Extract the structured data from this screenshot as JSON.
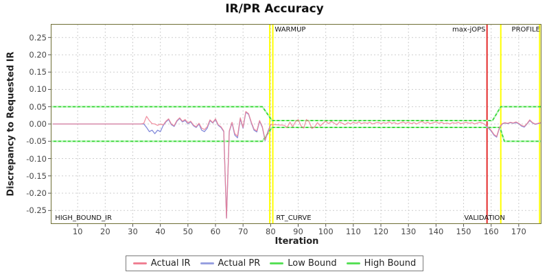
{
  "title": "IR/PR Accuracy",
  "x_axis": {
    "label": "Iteration"
  },
  "y_axis": {
    "label": "Discrepancy to Requested IR"
  },
  "legend": {
    "items": [
      {
        "label": "Actual IR",
        "color": "#ef8093"
      },
      {
        "label": "Actual PR",
        "color": "#98a0e0"
      },
      {
        "label": "Low Bound",
        "color": "#57e057"
      },
      {
        "label": "High Bound",
        "color": "#57e057"
      }
    ]
  },
  "colors": {
    "plot_border": "#6d6d32",
    "grid": "#cdcdcd",
    "tick_label": "#464646",
    "warmup_line": "#ffff00",
    "max_jops_line": "#e42b2b",
    "actual_ir": "#ef8093",
    "actual_pr": "#8289da",
    "bound": "#3fd83f"
  },
  "chart_data": {
    "type": "line",
    "title": "IR/PR Accuracy",
    "xlabel": "Iteration",
    "ylabel": "Discrepancy to Requested IR",
    "xlim": [
      0.5,
      178
    ],
    "ylim": [
      -0.287,
      0.287
    ],
    "grid": true,
    "legend_position": "bottom",
    "x_ticks": [
      10,
      20,
      30,
      40,
      50,
      60,
      70,
      80,
      90,
      100,
      110,
      120,
      130,
      140,
      150,
      160,
      170
    ],
    "y_ticks": [
      "0.25",
      "0.20",
      "0.15",
      "0.10",
      "0.05",
      "0.00",
      "-0.05",
      "-0.10",
      "-0.15",
      "-0.20",
      "-0.25"
    ],
    "events": [
      {
        "name": "warmup-start",
        "x": 79.7,
        "color": "#ffff00",
        "width": 2
      },
      {
        "name": "warmup-end",
        "x": 80.8,
        "color": "#ffff00",
        "width": 2
      },
      {
        "name": "max-jops",
        "x": 158.5,
        "color": "#e42b2b",
        "width": 2
      },
      {
        "name": "profile-start",
        "x": 163.5,
        "color": "#ffff00",
        "width": 2
      },
      {
        "name": "profile-end",
        "x": 177.6,
        "color": "#ffff00",
        "width": 2
      }
    ],
    "annotations": [
      {
        "text": "WARMUP",
        "x": 81,
        "v": "top",
        "align": "left"
      },
      {
        "text": "max-jOPS",
        "x": 158.2,
        "v": "top",
        "align": "right"
      },
      {
        "text": "PROFILE",
        "x": 178,
        "v": "top",
        "align": "right"
      },
      {
        "text": "HIGH_BOUND_IR",
        "x": 1.3,
        "v": "bottom",
        "align": "left"
      },
      {
        "text": "RT_CURVE",
        "x": 81.5,
        "v": "bottom",
        "align": "left"
      },
      {
        "text": "VALIDATION",
        "x": 149.7,
        "v": "bottom",
        "align": "left"
      }
    ],
    "series": [
      {
        "name": "High Bound",
        "color": "#3fd83f",
        "width": 2,
        "dash_overlay": "#b9f7b9",
        "segments": [
          [
            [
              0.5,
              0.05
            ],
            [
              77,
              0.05
            ],
            [
              80.5,
              0.01
            ],
            [
              160.5,
              0.01
            ],
            [
              163.5,
              0.05
            ],
            [
              178,
              0.05
            ]
          ]
        ]
      },
      {
        "name": "Low Bound",
        "color": "#3fd83f",
        "width": 2,
        "dash_overlay": "#b9f7b9",
        "segments": [
          [
            [
              0.5,
              -0.05
            ],
            [
              77,
              -0.05
            ],
            [
              80.5,
              -0.01
            ],
            [
              163.2,
              -0.01
            ],
            [
              164.8,
              -0.05
            ],
            [
              178,
              -0.05
            ]
          ]
        ]
      },
      {
        "name": "Actual PR",
        "color": "#8289da",
        "width": 1.3,
        "segments": [
          [
            [
              1,
              0
            ],
            [
              33,
              0
            ],
            [
              34,
              0
            ],
            [
              35,
              -0.01
            ],
            [
              36,
              -0.022
            ],
            [
              37,
              -0.018
            ],
            [
              38,
              -0.028
            ],
            [
              39,
              -0.018
            ],
            [
              40,
              -0.022
            ],
            [
              41,
              -0.005
            ],
            [
              42,
              0.006
            ],
            [
              43,
              0.013
            ],
            [
              44,
              -0.002
            ],
            [
              45,
              -0.007
            ],
            [
              46,
              0.008
            ],
            [
              47,
              0.016
            ],
            [
              48,
              0.006
            ],
            [
              49,
              0.01
            ],
            [
              50,
              0.001
            ],
            [
              51,
              0.006
            ],
            [
              52,
              -0.005
            ],
            [
              53,
              -0.01
            ],
            [
              54,
              0
            ],
            [
              55,
              -0.018
            ],
            [
              56,
              -0.022
            ],
            [
              57,
              -0.012
            ],
            [
              58,
              0.01
            ],
            [
              59,
              0.003
            ],
            [
              60,
              0.013
            ],
            [
              61,
              -0.004
            ],
            [
              62,
              -0.01
            ],
            [
              63,
              -0.022
            ],
            [
              64,
              -0.272
            ],
            [
              65,
              -0.022
            ],
            [
              66,
              0.003
            ],
            [
              67,
              -0.032
            ],
            [
              68,
              -0.04
            ],
            [
              69,
              0.015
            ],
            [
              70,
              -0.012
            ],
            [
              71,
              0.034
            ],
            [
              72,
              0.028
            ],
            [
              73,
              0.003
            ],
            [
              74,
              -0.018
            ],
            [
              75,
              -0.023
            ],
            [
              76,
              0.008
            ],
            [
              77,
              -0.01
            ],
            [
              78,
              -0.048
            ],
            [
              79,
              -0.022
            ],
            [
              80,
              -0.002
            ]
          ],
          [
            [
              158,
              -0.004
            ],
            [
              159,
              -0.012
            ],
            [
              160,
              -0.02
            ],
            [
              161,
              -0.032
            ],
            [
              162,
              -0.038
            ],
            [
              163,
              -0.012
            ],
            [
              164,
              0
            ],
            [
              165,
              0.003
            ],
            [
              166,
              0.001
            ],
            [
              167,
              0.004
            ],
            [
              168,
              0.002
            ],
            [
              169,
              0.004
            ],
            [
              170,
              0.001
            ],
            [
              171,
              -0.006
            ],
            [
              172,
              -0.009
            ],
            [
              173,
              0
            ],
            [
              174,
              0.01
            ],
            [
              175,
              0.003
            ],
            [
              176,
              -0.001
            ],
            [
              177,
              0.001
            ],
            [
              178,
              0.003
            ]
          ]
        ]
      },
      {
        "name": "Actual IR",
        "color": "#ef8093",
        "width": 1.3,
        "opacity": 0.85,
        "segments": [
          [
            [
              1,
              0
            ],
            [
              33,
              0
            ],
            [
              34,
              0.002
            ],
            [
              35,
              0.022
            ],
            [
              36,
              0.01
            ],
            [
              37,
              0.001
            ],
            [
              38,
              0
            ],
            [
              39,
              -0.004
            ],
            [
              40,
              0
            ],
            [
              41,
              -0.003
            ],
            [
              42,
              0.008
            ],
            [
              43,
              0.015
            ],
            [
              44,
              0
            ],
            [
              45,
              -0.005
            ],
            [
              46,
              0.01
            ],
            [
              47,
              0.018
            ],
            [
              48,
              0.008
            ],
            [
              49,
              0.013
            ],
            [
              50,
              0.003
            ],
            [
              51,
              0.008
            ],
            [
              52,
              -0.003
            ],
            [
              53,
              -0.008
            ],
            [
              54,
              0.002
            ],
            [
              55,
              -0.012
            ],
            [
              56,
              -0.016
            ],
            [
              57,
              -0.008
            ],
            [
              58,
              0.012
            ],
            [
              59,
              0.004
            ],
            [
              60,
              0.015
            ],
            [
              61,
              -0.002
            ],
            [
              62,
              -0.008
            ],
            [
              63,
              -0.02
            ],
            [
              64,
              -0.272
            ],
            [
              65,
              -0.02
            ],
            [
              66,
              0.005
            ],
            [
              67,
              -0.028
            ],
            [
              68,
              -0.035
            ],
            [
              69,
              0.018
            ],
            [
              70,
              -0.01
            ],
            [
              71,
              0.036
            ],
            [
              72,
              0.03
            ],
            [
              73,
              0.005
            ],
            [
              74,
              -0.015
            ],
            [
              75,
              -0.02
            ],
            [
              76,
              0.01
            ],
            [
              77,
              -0.008
            ],
            [
              78,
              -0.046
            ],
            [
              79,
              -0.025
            ],
            [
              80,
              -0.002
            ],
            [
              81,
              -0.002
            ],
            [
              82,
              -0.002
            ],
            [
              83,
              -0.003
            ],
            [
              84,
              -0.003
            ],
            [
              85,
              -0.004
            ],
            [
              86,
              -0.01
            ],
            [
              87,
              0.005
            ],
            [
              88,
              -0.008
            ],
            [
              89,
              0.006
            ],
            [
              90,
              0.013
            ],
            [
              91,
              -0.005
            ],
            [
              92,
              -0.012
            ],
            [
              93,
              0.013
            ],
            [
              94,
              0.006
            ],
            [
              95,
              -0.013
            ],
            [
              96,
              -0.008
            ],
            [
              97,
              0.004
            ],
            [
              98,
              -0.006
            ],
            [
              99,
              0.002
            ],
            [
              100,
              0.008
            ],
            [
              101,
              0.001
            ],
            [
              102,
              0.007
            ],
            [
              103,
              0.003
            ],
            [
              104,
              -0.003
            ],
            [
              105,
              0.006
            ],
            [
              106,
              0.002
            ],
            [
              107,
              -0.002
            ],
            [
              108,
              0.004
            ],
            [
              109,
              0
            ],
            [
              110,
              0.005
            ],
            [
              111,
              0.002
            ],
            [
              112,
              0.006
            ],
            [
              113,
              0.001
            ],
            [
              114,
              0.004
            ],
            [
              115,
              0.002
            ],
            [
              116,
              0.005
            ],
            [
              117,
              0
            ],
            [
              118,
              0.003
            ],
            [
              119,
              0.005
            ],
            [
              120,
              0.001
            ],
            [
              121,
              0.004
            ],
            [
              122,
              0.002
            ],
            [
              123,
              0.006
            ],
            [
              124,
              0.002
            ],
            [
              125,
              0.004
            ],
            [
              126,
              0
            ],
            [
              127,
              0.003
            ],
            [
              128,
              0.006
            ],
            [
              129,
              0.002
            ],
            [
              130,
              0.005
            ],
            [
              131,
              0.001
            ],
            [
              132,
              0.004
            ],
            [
              133,
              0
            ],
            [
              134,
              0.005
            ],
            [
              135,
              0.007
            ],
            [
              136,
              0.002
            ],
            [
              137,
              0.005
            ],
            [
              138,
              0.001
            ],
            [
              139,
              0.004
            ],
            [
              140,
              0.006
            ],
            [
              141,
              0.002
            ],
            [
              142,
              0.005
            ],
            [
              143,
              0.001
            ],
            [
              144,
              0.003
            ],
            [
              145,
              0
            ],
            [
              146,
              0.004
            ],
            [
              147,
              0.002
            ],
            [
              148,
              0.005
            ],
            [
              149,
              0.001
            ],
            [
              150,
              0.003
            ],
            [
              151,
              0.005
            ],
            [
              152,
              0.002
            ],
            [
              153,
              0.004
            ],
            [
              154,
              0
            ],
            [
              155,
              0.003
            ],
            [
              156,
              0.005
            ],
            [
              157,
              0.002
            ],
            [
              158,
              -0.003
            ],
            [
              159,
              -0.01
            ],
            [
              160,
              -0.018
            ],
            [
              161,
              -0.03
            ],
            [
              162,
              -0.036
            ],
            [
              163,
              -0.01
            ],
            [
              164,
              0.001
            ],
            [
              165,
              0.004
            ],
            [
              166,
              0.002
            ],
            [
              167,
              0.005
            ],
            [
              168,
              0.003
            ],
            [
              169,
              0.006
            ],
            [
              170,
              0.002
            ],
            [
              171,
              -0.004
            ],
            [
              172,
              -0.007
            ],
            [
              173,
              0.001
            ],
            [
              174,
              0.012
            ],
            [
              175,
              0.004
            ],
            [
              176,
              0
            ],
            [
              177,
              0.002
            ],
            [
              178,
              0.004
            ]
          ]
        ]
      }
    ]
  }
}
